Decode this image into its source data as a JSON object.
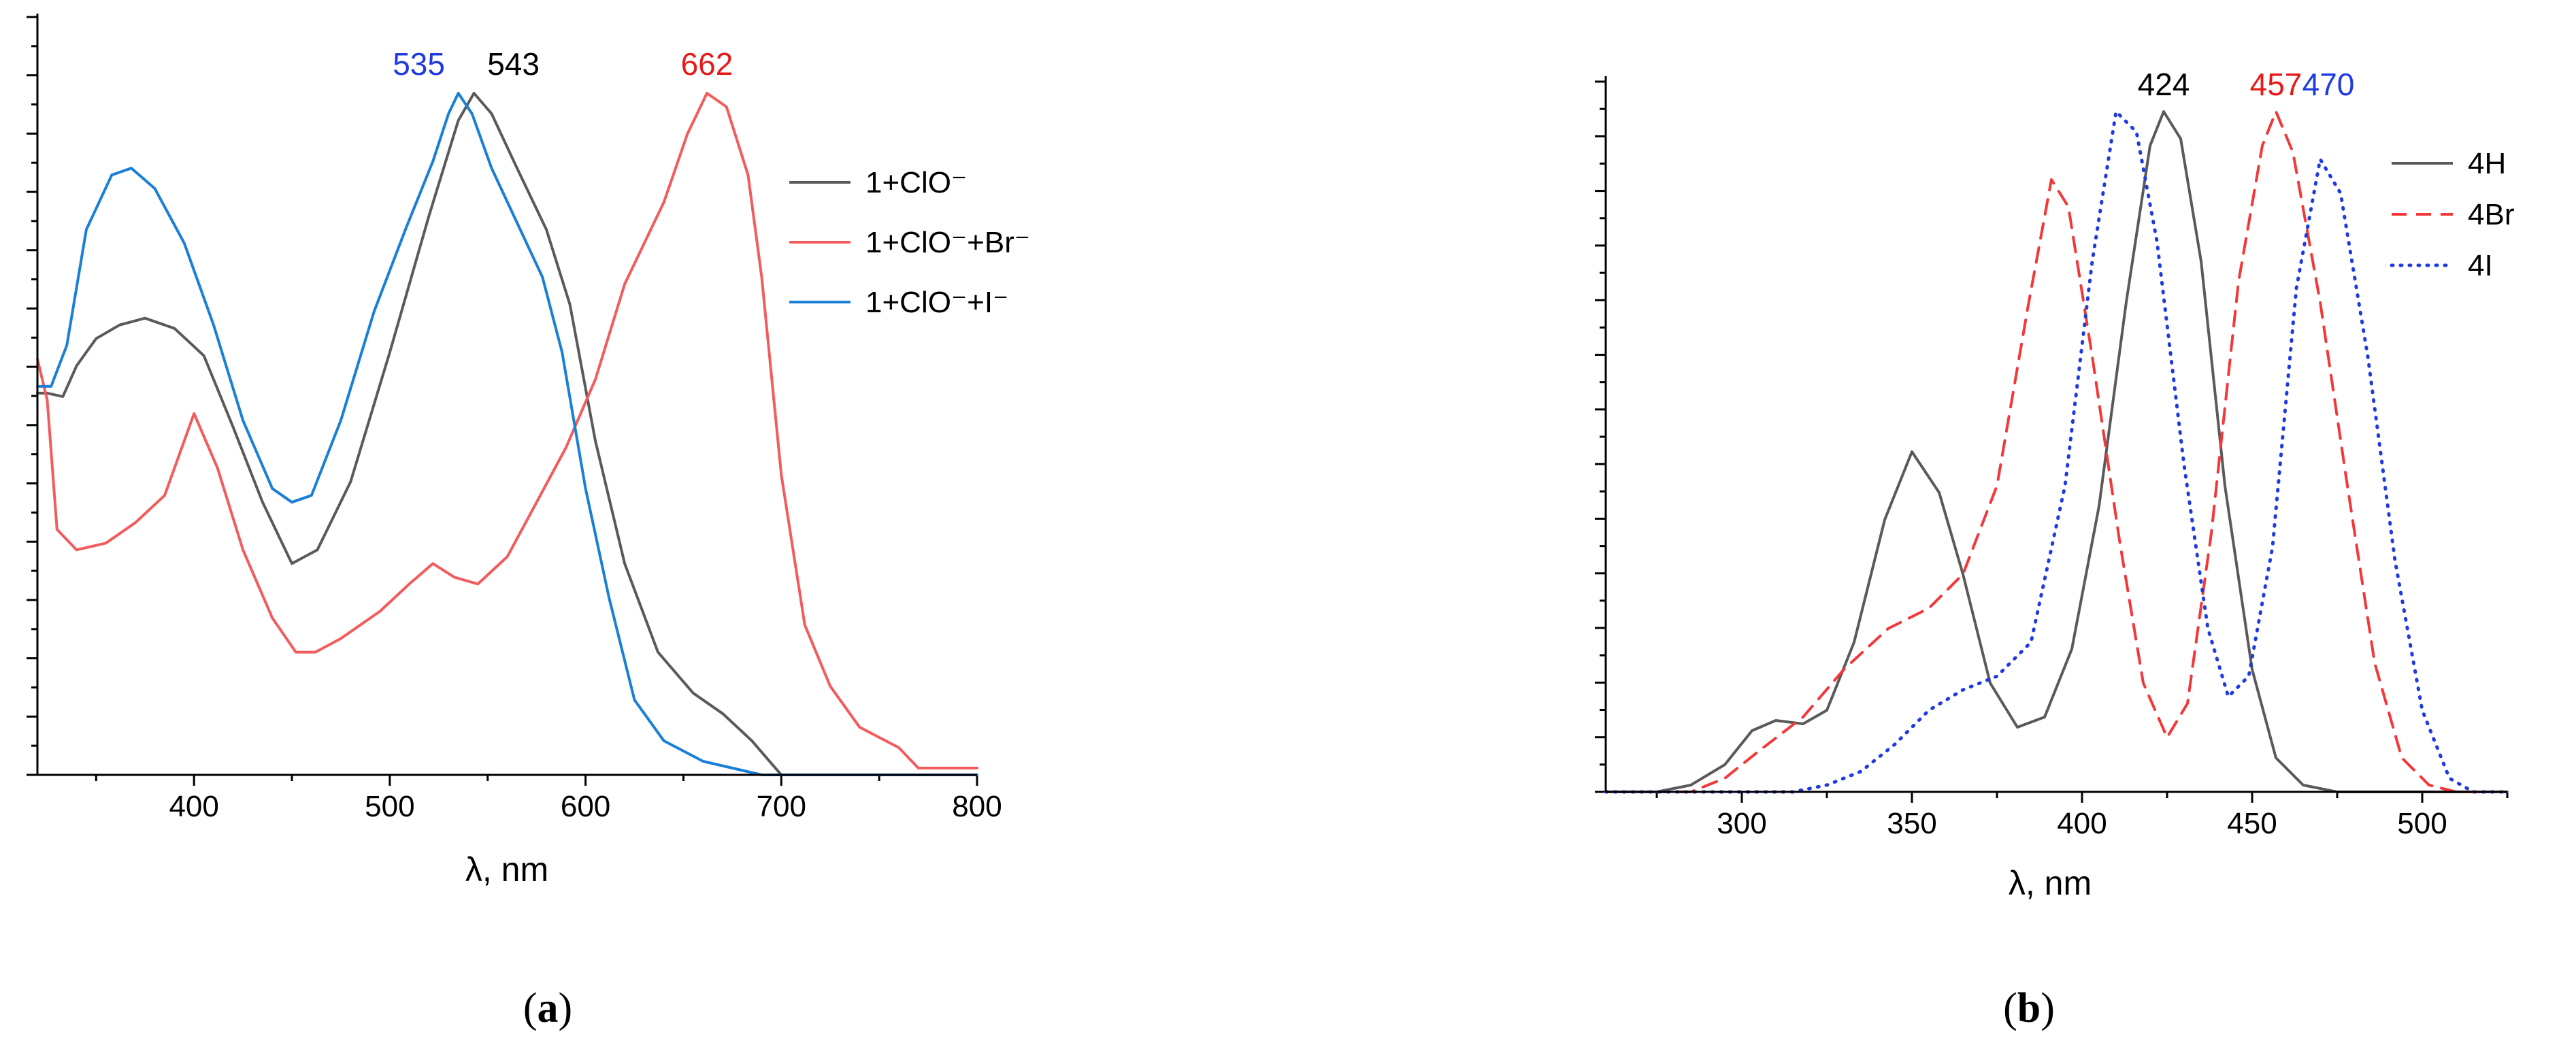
{
  "panels": [
    {
      "label_open": "(",
      "label_letter": "a",
      "label_close": ")"
    },
    {
      "label_open": "(",
      "label_letter": "b",
      "label_close": ")"
    }
  ],
  "chart_data": [
    {
      "type": "line",
      "xlabel": "λ, nm",
      "ylabel": "",
      "xlim": [
        320,
        800
      ],
      "ylim": [
        0,
        1.0
      ],
      "x_ticks": [
        400,
        500,
        600,
        700,
        800
      ],
      "y_tick_labels": "none",
      "legend_position": "top-right",
      "series": [
        {
          "name": "1+ClO⁻",
          "color": "#5a5a5a",
          "line_style": "solid",
          "points": [
            [
              320,
              0.56
            ],
            [
              325,
              0.56
            ],
            [
              333,
              0.555
            ],
            [
              340,
              0.6
            ],
            [
              350,
              0.64
            ],
            [
              362,
              0.66
            ],
            [
              375,
              0.67
            ],
            [
              390,
              0.655
            ],
            [
              405,
              0.615
            ],
            [
              420,
              0.51
            ],
            [
              435,
              0.4
            ],
            [
              450,
              0.31
            ],
            [
              463,
              0.33
            ],
            [
              480,
              0.43
            ],
            [
              500,
              0.62
            ],
            [
              520,
              0.82
            ],
            [
              535,
              0.96
            ],
            [
              543,
              1.0
            ],
            [
              552,
              0.97
            ],
            [
              565,
              0.89
            ],
            [
              580,
              0.8
            ],
            [
              592,
              0.69
            ],
            [
              605,
              0.49
            ],
            [
              620,
              0.31
            ],
            [
              637,
              0.18
            ],
            [
              655,
              0.12
            ],
            [
              670,
              0.09
            ],
            [
              685,
              0.05
            ],
            [
              700,
              0.0
            ],
            [
              740,
              0.0
            ],
            [
              800,
              0.0
            ]
          ]
        },
        {
          "name": "1+ClO⁻+Br⁻",
          "color": "#f25c5c",
          "line_style": "solid",
          "points": [
            [
              320,
              0.61
            ],
            [
              325,
              0.55
            ],
            [
              330,
              0.36
            ],
            [
              340,
              0.33
            ],
            [
              355,
              0.34
            ],
            [
              370,
              0.37
            ],
            [
              385,
              0.41
            ],
            [
              400,
              0.53
            ],
            [
              412,
              0.45
            ],
            [
              425,
              0.33
            ],
            [
              440,
              0.23
            ],
            [
              452,
              0.18
            ],
            [
              462,
              0.18
            ],
            [
              475,
              0.2
            ],
            [
              495,
              0.24
            ],
            [
              510,
              0.28
            ],
            [
              522,
              0.31
            ],
            [
              533,
              0.29
            ],
            [
              545,
              0.28
            ],
            [
              560,
              0.32
            ],
            [
              575,
              0.4
            ],
            [
              590,
              0.48
            ],
            [
              605,
              0.58
            ],
            [
              620,
              0.72
            ],
            [
              640,
              0.84
            ],
            [
              652,
              0.94
            ],
            [
              662,
              1.0
            ],
            [
              672,
              0.98
            ],
            [
              683,
              0.88
            ],
            [
              690,
              0.73
            ],
            [
              700,
              0.44
            ],
            [
              712,
              0.22
            ],
            [
              725,
              0.13
            ],
            [
              740,
              0.07
            ],
            [
              760,
              0.04
            ],
            [
              770,
              0.01
            ],
            [
              800,
              0.01
            ]
          ]
        },
        {
          "name": "1+ClO⁻+I⁻",
          "color": "#1a7fd6",
          "line_style": "solid",
          "points": [
            [
              320,
              0.57
            ],
            [
              327,
              0.57
            ],
            [
              335,
              0.63
            ],
            [
              345,
              0.8
            ],
            [
              358,
              0.88
            ],
            [
              368,
              0.89
            ],
            [
              380,
              0.86
            ],
            [
              395,
              0.78
            ],
            [
              410,
              0.66
            ],
            [
              425,
              0.52
            ],
            [
              440,
              0.42
            ],
            [
              450,
              0.4
            ],
            [
              460,
              0.41
            ],
            [
              475,
              0.52
            ],
            [
              492,
              0.68
            ],
            [
              508,
              0.8
            ],
            [
              522,
              0.9
            ],
            [
              530,
              0.97
            ],
            [
              535,
              1.0
            ],
            [
              542,
              0.97
            ],
            [
              552,
              0.89
            ],
            [
              565,
              0.81
            ],
            [
              578,
              0.73
            ],
            [
              588,
              0.62
            ],
            [
              600,
              0.42
            ],
            [
              612,
              0.26
            ],
            [
              625,
              0.11
            ],
            [
              640,
              0.05
            ],
            [
              660,
              0.02
            ],
            [
              690,
              0.0
            ],
            [
              800,
              0.0
            ]
          ]
        }
      ],
      "annotations": [
        {
          "text": "535",
          "x": 535,
          "color": "#1f3be0"
        },
        {
          "text": "543",
          "x": 543,
          "color": "#000000"
        },
        {
          "text": "662",
          "x": 662,
          "color": "#e61a1a"
        }
      ]
    },
    {
      "type": "line",
      "xlabel": "λ, nm",
      "ylabel": "",
      "xlim": [
        260,
        525
      ],
      "ylim": [
        0,
        1.0
      ],
      "x_ticks": [
        300,
        350,
        400,
        450,
        500
      ],
      "y_tick_labels": "none",
      "legend_position": "top-right",
      "series": [
        {
          "name": "4H",
          "color": "#5a5a5a",
          "line_style": "solid",
          "points": [
            [
              260,
              0.0
            ],
            [
              275,
              0.0
            ],
            [
              285,
              0.01
            ],
            [
              295,
              0.04
            ],
            [
              303,
              0.09
            ],
            [
              310,
              0.105
            ],
            [
              318,
              0.1
            ],
            [
              325,
              0.12
            ],
            [
              333,
              0.22
            ],
            [
              342,
              0.4
            ],
            [
              350,
              0.5
            ],
            [
              358,
              0.44
            ],
            [
              365,
              0.32
            ],
            [
              373,
              0.16
            ],
            [
              381,
              0.095
            ],
            [
              389,
              0.11
            ],
            [
              397,
              0.21
            ],
            [
              405,
              0.42
            ],
            [
              413,
              0.72
            ],
            [
              420,
              0.95
            ],
            [
              424,
              1.0
            ],
            [
              429,
              0.96
            ],
            [
              435,
              0.78
            ],
            [
              442,
              0.45
            ],
            [
              450,
              0.18
            ],
            [
              457,
              0.05
            ],
            [
              465,
              0.01
            ],
            [
              475,
              0.0
            ],
            [
              525,
              0.0
            ]
          ]
        },
        {
          "name": "4Br",
          "color": "#f23838",
          "line_style": "dashed",
          "points": [
            [
              260,
              0.0
            ],
            [
              285,
              0.0
            ],
            [
              295,
              0.02
            ],
            [
              305,
              0.06
            ],
            [
              318,
              0.11
            ],
            [
              330,
              0.18
            ],
            [
              343,
              0.24
            ],
            [
              355,
              0.27
            ],
            [
              365,
              0.32
            ],
            [
              375,
              0.45
            ],
            [
              384,
              0.71
            ],
            [
              391,
              0.9
            ],
            [
              396,
              0.86
            ],
            [
              403,
              0.64
            ],
            [
              411,
              0.37
            ],
            [
              418,
              0.16
            ],
            [
              425,
              0.08
            ],
            [
              431,
              0.13
            ],
            [
              438,
              0.38
            ],
            [
              446,
              0.75
            ],
            [
              453,
              0.95
            ],
            [
              457,
              1.0
            ],
            [
              462,
              0.94
            ],
            [
              470,
              0.72
            ],
            [
              478,
              0.45
            ],
            [
              486,
              0.19
            ],
            [
              494,
              0.05
            ],
            [
              502,
              0.01
            ],
            [
              510,
              0.0
            ],
            [
              525,
              0.0
            ]
          ]
        },
        {
          "name": "4I",
          "color": "#1f3be0",
          "line_style": "dotted",
          "points": [
            [
              260,
              0.0
            ],
            [
              315,
              0.0
            ],
            [
              325,
              0.01
            ],
            [
              335,
              0.03
            ],
            [
              345,
              0.07
            ],
            [
              355,
              0.12
            ],
            [
              365,
              0.15
            ],
            [
              375,
              0.17
            ],
            [
              385,
              0.22
            ],
            [
              395,
              0.45
            ],
            [
              403,
              0.78
            ],
            [
              410,
              1.0
            ],
            [
              416,
              0.97
            ],
            [
              422,
              0.81
            ],
            [
              430,
              0.48
            ],
            [
              437,
              0.24
            ],
            [
              443,
              0.14
            ],
            [
              449,
              0.17
            ],
            [
              456,
              0.36
            ],
            [
              463,
              0.74
            ],
            [
              470,
              0.93
            ],
            [
              476,
              0.88
            ],
            [
              484,
              0.64
            ],
            [
              492,
              0.34
            ],
            [
              500,
              0.12
            ],
            [
              508,
              0.02
            ],
            [
              515,
              0.0
            ],
            [
              525,
              0.0
            ]
          ]
        }
      ],
      "annotations": [
        {
          "text": "424",
          "x": 424,
          "color": "#000000"
        },
        {
          "text": "457",
          "x": 457,
          "color": "#e61a1a"
        },
        {
          "text": "470",
          "x": 470,
          "color": "#1f3be0"
        }
      ]
    }
  ]
}
